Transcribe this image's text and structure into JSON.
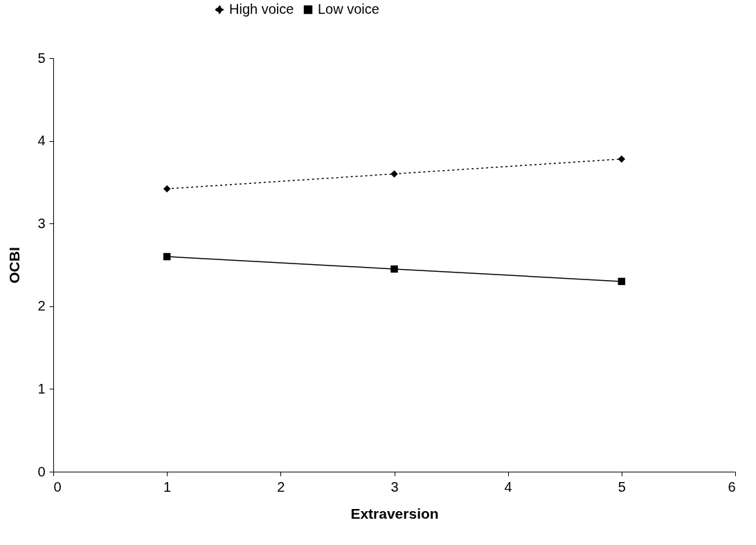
{
  "chart_data": {
    "type": "line",
    "xlabel": "Extraversion",
    "ylabel": "OCBI",
    "x": [
      1,
      3,
      5
    ],
    "series": [
      {
        "name": "High voice",
        "color": "#000000",
        "values": [
          3.42,
          3.6,
          3.78
        ],
        "marker": "diamond",
        "line_style": "dotted"
      },
      {
        "name": "Low voice",
        "color": "#000000",
        "values": [
          2.6,
          2.45,
          2.3
        ],
        "marker": "square",
        "line_style": "solid"
      }
    ],
    "xlim": [
      0,
      6
    ],
    "xticks": [
      0,
      1,
      2,
      3,
      4,
      5,
      6
    ],
    "ylim": [
      0,
      5
    ],
    "yticks": [
      0,
      1,
      2,
      3,
      4,
      5
    ],
    "grid": false,
    "legend": "top"
  }
}
